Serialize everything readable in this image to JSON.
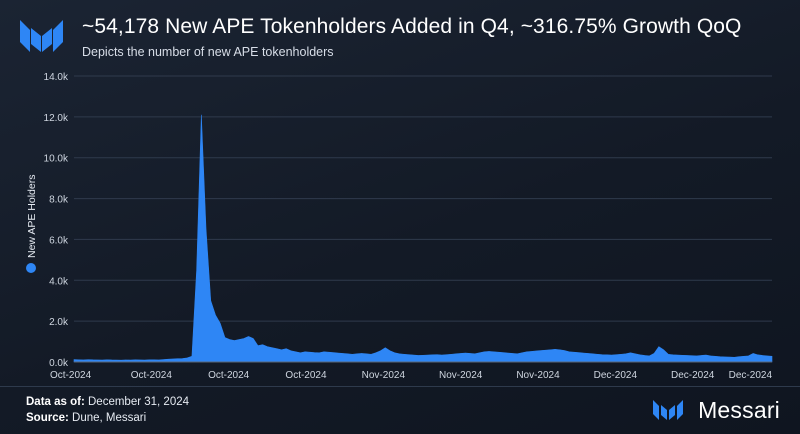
{
  "header": {
    "title": "~54,178 New APE Tokenholders Added in Q4, ~316.75% Growth QoQ",
    "subtitle": "Depicts the number of new APE tokenholders"
  },
  "footer": {
    "data_as_of_label": "Data as of:",
    "data_as_of_value": "December 31, 2024",
    "source_label": "Source:",
    "source_value": "Dune, Messari"
  },
  "brand": {
    "name": "Messari"
  },
  "colors": {
    "series": "#2e86f5",
    "grid": "#2f3a4c",
    "axis_text": "#cfd6e0"
  },
  "chart_data": {
    "type": "area",
    "title": "~54,178 New APE Tokenholders Added in Q4, ~316.75% Growth QoQ",
    "ylabel": "New APE Holders",
    "xlabel": "",
    "ylim": [
      0,
      14000
    ],
    "y_ticks": [
      "0.0k",
      "2.0k",
      "4.0k",
      "6.0k",
      "8.0k",
      "10.0k",
      "12.0k",
      "14.0k"
    ],
    "x_ticks": [
      "Oct-2024",
      "Oct-2024",
      "Oct-2024",
      "Oct-2024",
      "Nov-2024",
      "Nov-2024",
      "Nov-2024",
      "Dec-2024",
      "Dec-2024",
      "Dec-2024"
    ],
    "grid": true,
    "legend": "left-vertical",
    "series": [
      {
        "name": "New APE Holders",
        "values": [
          120,
          110,
          100,
          115,
          105,
          100,
          95,
          110,
          100,
          95,
          90,
          100,
          95,
          105,
          100,
          95,
          110,
          105,
          100,
          120,
          140,
          150,
          160,
          170,
          200,
          280,
          4500,
          12100,
          6500,
          3000,
          2300,
          1900,
          1200,
          1100,
          1050,
          1100,
          1150,
          1250,
          1150,
          800,
          850,
          750,
          700,
          650,
          600,
          650,
          550,
          500,
          450,
          500,
          480,
          460,
          450,
          500,
          480,
          460,
          440,
          420,
          400,
          380,
          400,
          420,
          400,
          380,
          450,
          550,
          700,
          550,
          450,
          400,
          380,
          360,
          340,
          320,
          330,
          340,
          350,
          360,
          340,
          360,
          380,
          400,
          420,
          440,
          420,
          400,
          450,
          500,
          520,
          500,
          480,
          460,
          440,
          420,
          400,
          450,
          500,
          520,
          540,
          560,
          580,
          600,
          620,
          600,
          560,
          500,
          480,
          460,
          440,
          420,
          400,
          380,
          360,
          350,
          340,
          360,
          380,
          400,
          450,
          400,
          350,
          320,
          300,
          420,
          750,
          600,
          380,
          350,
          340,
          330,
          320,
          310,
          300,
          320,
          340,
          300,
          280,
          260,
          250,
          240,
          230,
          260,
          280,
          300,
          420,
          350,
          320,
          300,
          280
        ]
      }
    ]
  }
}
